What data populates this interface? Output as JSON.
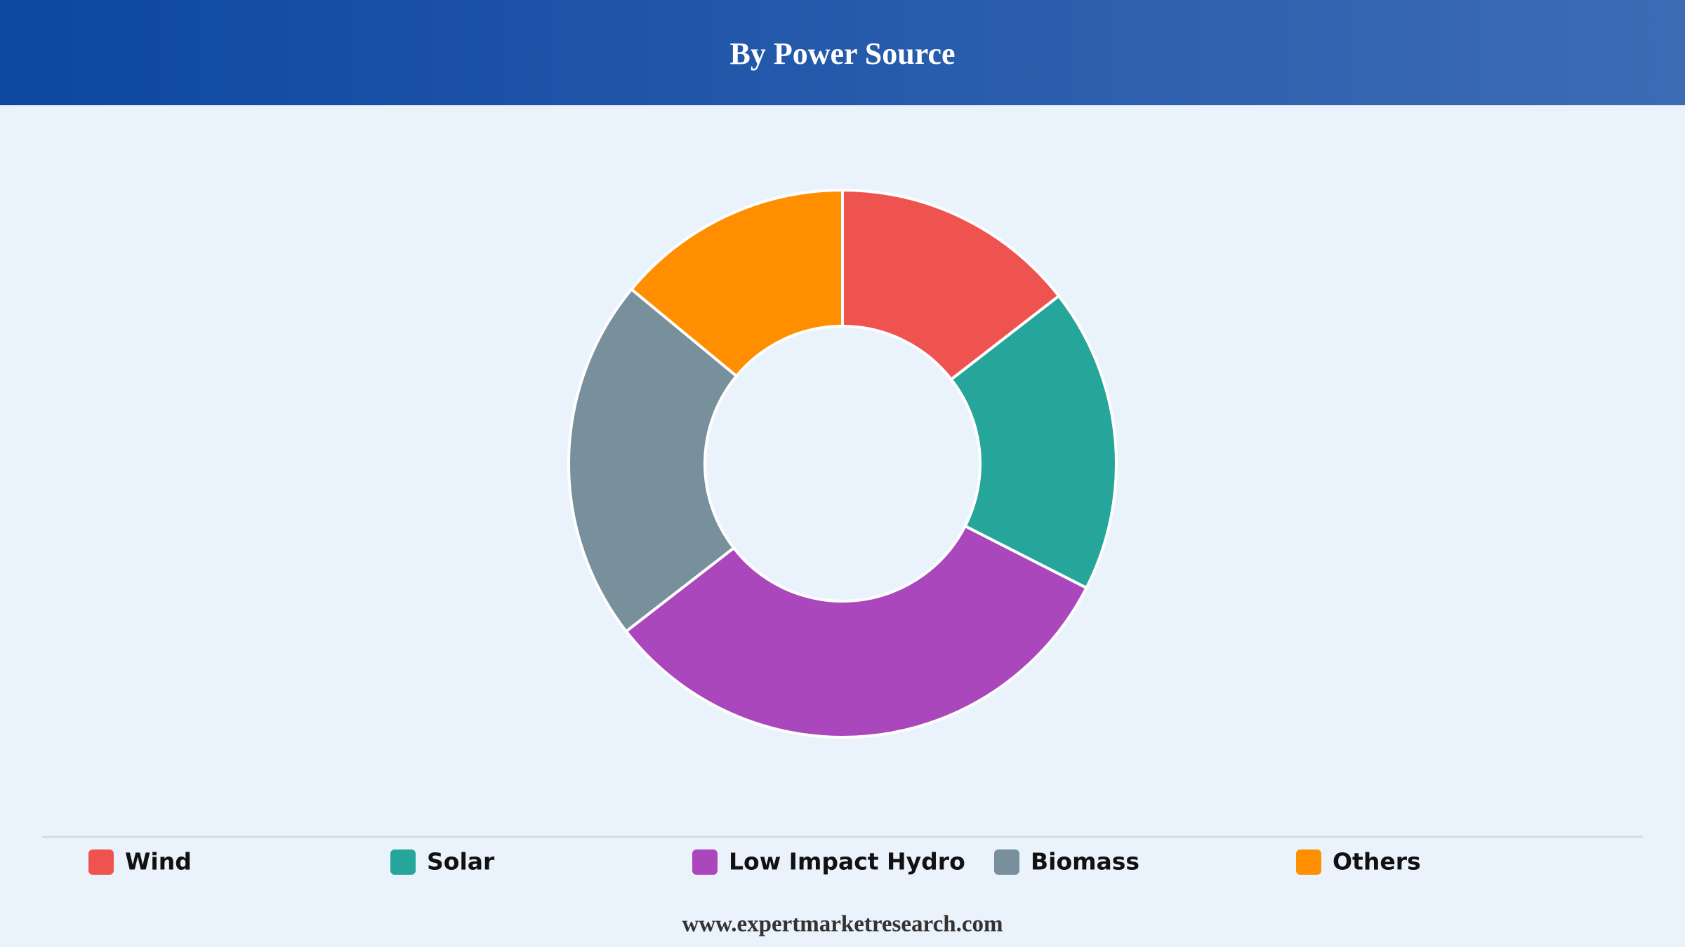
{
  "chart_data": {
    "type": "pie",
    "title": "By Power Source",
    "categories": [
      "Wind",
      "Solar",
      "Low Impact Hydro",
      "Biomass",
      "Others"
    ],
    "values": [
      14.5,
      18,
      32,
      21.5,
      14
    ],
    "colors": [
      "#ef5350",
      "#26a69a",
      "#ab47bc",
      "#78909c",
      "#ff8f00"
    ],
    "legend": "bottom"
  },
  "footer": "www.expertmarketresearch.com"
}
